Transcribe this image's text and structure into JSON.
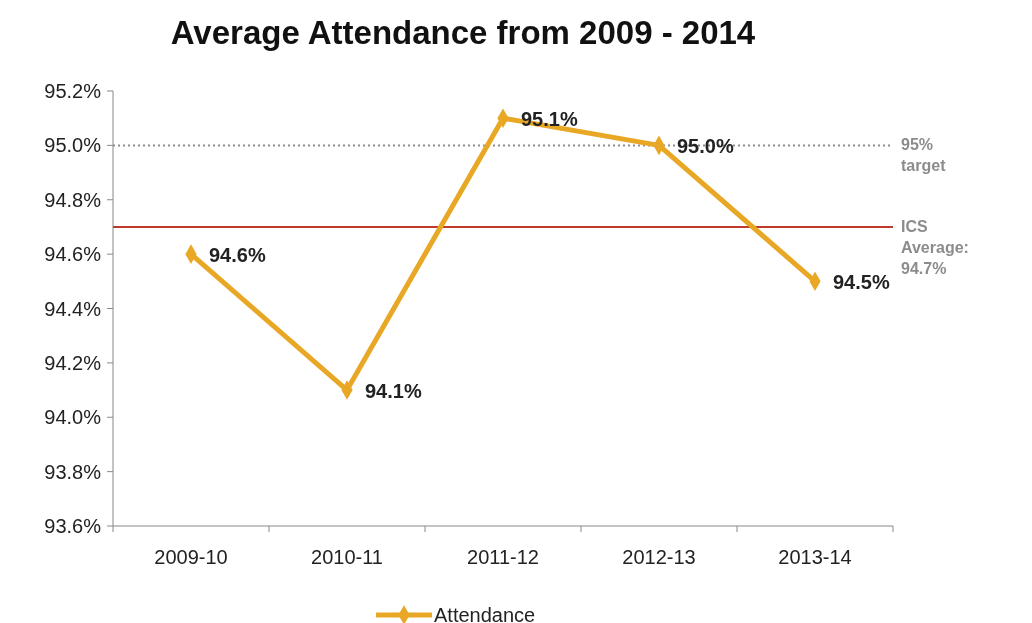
{
  "chart_data": {
    "type": "line",
    "title": "Average Attendance from 2009 - 2014",
    "categories": [
      "2009-10",
      "2010-11",
      "2011-12",
      "2012-13",
      "2013-14"
    ],
    "series": [
      {
        "name": "Attendance",
        "color": "#e8a825",
        "values": [
          94.6,
          94.1,
          95.1,
          95.0,
          94.5
        ],
        "value_labels": [
          "94.6%",
          "94.1%",
          "95.1%",
          "95.0%",
          "94.5%"
        ]
      }
    ],
    "ylim": [
      93.6,
      95.2
    ],
    "yticks": [
      {
        "value": 93.6,
        "label": "93.6%"
      },
      {
        "value": 93.8,
        "label": "93.8%"
      },
      {
        "value": 94.0,
        "label": "94.0%"
      },
      {
        "value": 94.2,
        "label": "94.2%"
      },
      {
        "value": 94.4,
        "label": "94.4%"
      },
      {
        "value": 94.6,
        "label": "94.6%"
      },
      {
        "value": 94.8,
        "label": "94.8%"
      },
      {
        "value": 95.0,
        "label": "95.0%"
      },
      {
        "value": 95.2,
        "label": "95.2%"
      }
    ],
    "ref_lines": [
      {
        "axis": "y",
        "value": 95.0,
        "label": "95% target",
        "color": "#8c8c8c",
        "line_style": "dotted"
      },
      {
        "axis": "y",
        "value": 94.7,
        "label": "ICS Average: 94.7%",
        "color": "#c0392b",
        "line_style": "solid"
      }
    ],
    "marker": "diamond",
    "line_style": "solid",
    "grid": false,
    "legend": "bottom"
  }
}
